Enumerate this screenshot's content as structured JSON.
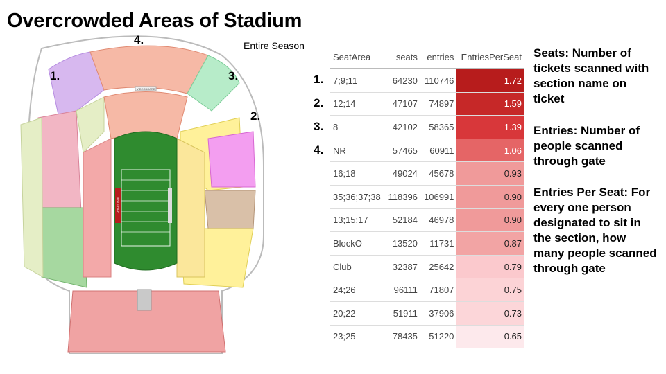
{
  "title": "Overcrowded Areas of Stadium",
  "subtitle": "Entire Season",
  "map_labels": [
    "1.",
    "2.",
    "3.",
    "4."
  ],
  "map_text": {
    "field": "OHIO STATE",
    "scoreboard": "VIDEOBOARD"
  },
  "rank_labels": [
    "1.",
    "2.",
    "3.",
    "4."
  ],
  "table": {
    "headers": [
      "SeatArea",
      "seats",
      "entries",
      "EntriesPerSeat"
    ],
    "rows": [
      [
        "7;9;11",
        "64230",
        "110746",
        "1.72"
      ],
      [
        "12;14",
        "47107",
        "74897",
        "1.59"
      ],
      [
        "8",
        "42102",
        "58365",
        "1.39"
      ],
      [
        "NR",
        "57465",
        "60911",
        "1.06"
      ],
      [
        "16;18",
        "49024",
        "45678",
        "0.93"
      ],
      [
        "35;36;37;38",
        "118396",
        "106991",
        "0.90"
      ],
      [
        "13;15;17",
        "52184",
        "46978",
        "0.90"
      ],
      [
        "BlockO",
        "13520",
        "11731",
        "0.87"
      ],
      [
        "Club",
        "32387",
        "25642",
        "0.79"
      ],
      [
        "24;26",
        "96111",
        "71807",
        "0.75"
      ],
      [
        "20;22",
        "51911",
        "37906",
        "0.73"
      ],
      [
        "23;25",
        "78435",
        "51220",
        "0.65"
      ]
    ],
    "colors": [
      "#b71c1c",
      "#c62828",
      "#d8373a",
      "#e56566",
      "#f09a9a",
      "#f09a9a",
      "#f09a9a",
      "#f2a4a4",
      "#fbc9cd",
      "#fcd3d6",
      "#fcd6d9",
      "#fde9ec"
    ]
  },
  "descriptions": {
    "seats": "Seats: Number of tickets scanned with section name on ticket",
    "entries": "Entries: Number of people scanned through gate",
    "eps": "Entries Per Seat: For every one person designated to sit in the section, how many people scanned through gate"
  }
}
